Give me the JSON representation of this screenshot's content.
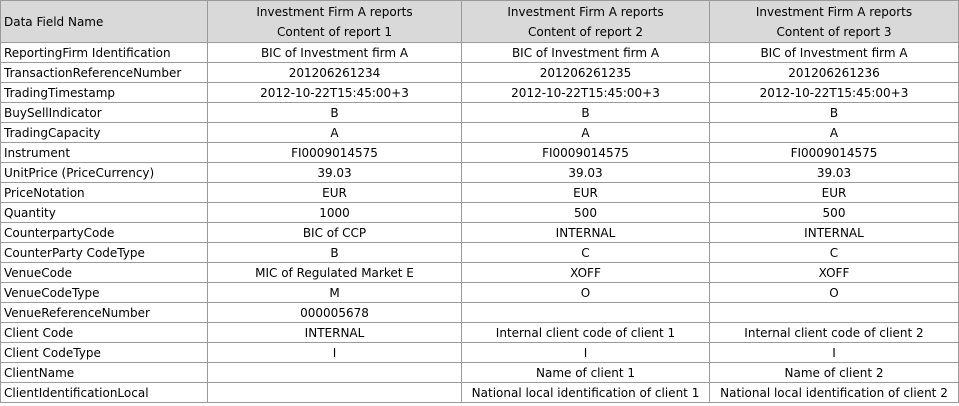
{
  "header": {
    "field_name": "Data Field Name",
    "reports": [
      {
        "line1": "Investment Firm A reports",
        "line2": "Content of report 1"
      },
      {
        "line1": "Investment Firm A reports",
        "line2": "Content of report 2"
      },
      {
        "line1": "Investment Firm A  reports",
        "line2": "Content of report 3"
      }
    ]
  },
  "rows": [
    {
      "field": "ReportingFirm Identification",
      "values": [
        "BIC of Investment firm A",
        "BIC of Investment firm A",
        "BIC of Investment firm A"
      ]
    },
    {
      "field": "TransactionReferenceNumber",
      "values": [
        "201206261234",
        "201206261235",
        "201206261236"
      ]
    },
    {
      "field": "TradingTimestamp",
      "values": [
        "2012-10-22T15:45:00+3",
        "2012-10-22T15:45:00+3",
        "2012-10-22T15:45:00+3"
      ]
    },
    {
      "field": "BuySellIndicator",
      "values": [
        "B",
        "B",
        "B"
      ]
    },
    {
      "field": "TradingCapacity",
      "values": [
        "A",
        "A",
        "A"
      ]
    },
    {
      "field": "Instrument",
      "values": [
        "FI0009014575",
        "FI0009014575",
        "FI0009014575"
      ]
    },
    {
      "field": "UnitPrice (PriceCurrency)",
      "values": [
        "39.03",
        "39.03",
        "39.03"
      ]
    },
    {
      "field": "PriceNotation",
      "values": [
        "EUR",
        "EUR",
        "EUR"
      ]
    },
    {
      "field": "Quantity",
      "values": [
        "1000",
        "500",
        "500"
      ]
    },
    {
      "field": "CounterpartyCode",
      "values": [
        "BIC of CCP",
        "INTERNAL",
        "INTERNAL"
      ]
    },
    {
      "field": "CounterParty CodeType",
      "values": [
        "B",
        "C",
        "C"
      ]
    },
    {
      "field": "VenueCode",
      "values": [
        "MIC of Regulated Market E",
        "XOFF",
        "XOFF"
      ]
    },
    {
      "field": "VenueCodeType",
      "values": [
        "M",
        "O",
        "O"
      ]
    },
    {
      "field": "VenueReferenceNumber",
      "values": [
        "000005678",
        "",
        ""
      ]
    },
    {
      "field": "Client Code",
      "values": [
        "INTERNAL",
        "Internal client code of client 1",
        "Internal client code of client 2"
      ]
    },
    {
      "field": "Client CodeType",
      "values": [
        "I",
        "I",
        "I"
      ]
    },
    {
      "field": "ClientName",
      "values": [
        "",
        "Name of client 1",
        "Name of client 2"
      ]
    },
    {
      "field": "ClientIdentificationLocal",
      "values": [
        "",
        "National local identification of client 1",
        "National local identification of client 2"
      ]
    }
  ]
}
